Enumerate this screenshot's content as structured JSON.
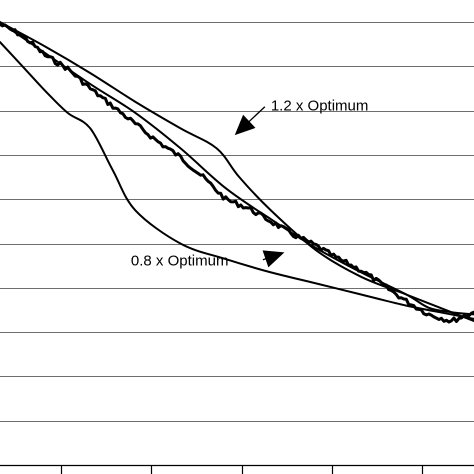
{
  "chart_data": {
    "type": "line",
    "title": "",
    "xlabel": "",
    "ylabel": "",
    "xlim": [
      0,
      10.5
    ],
    "ylim": [
      0,
      10.5
    ],
    "grid": "horizontal",
    "legend": "none",
    "series": [
      {
        "key": "upper",
        "x": [
          0,
          1,
          2,
          3,
          4,
          4.8,
          5.3,
          6,
          7,
          8,
          9,
          10,
          10.5
        ],
        "y": [
          10,
          9.45,
          8.85,
          8.2,
          7.6,
          7.15,
          6.5,
          5.75,
          4.85,
          4.25,
          3.85,
          3.45,
          3.25
        ]
      },
      {
        "key": "optimum",
        "x": [
          0,
          1,
          2,
          3,
          4,
          5,
          6,
          7,
          8,
          9,
          9.5,
          10,
          10.5
        ],
        "y": [
          10,
          9.3,
          8.6,
          7.95,
          7.15,
          6.25,
          5.55,
          4.9,
          4.35,
          3.85,
          3.55,
          3.45,
          3.4
        ]
      },
      {
        "key": "measured",
        "thick": true,
        "noisy": true,
        "x": [
          0,
          0.5,
          1,
          1.5,
          2,
          2.5,
          3,
          3.5,
          4,
          4.5,
          5,
          5.5,
          6,
          6.5,
          7,
          7.5,
          8,
          8.5,
          9,
          9.5,
          10,
          10.5
        ],
        "y": [
          9.95,
          9.7,
          9.25,
          8.95,
          8.5,
          8.1,
          7.7,
          7.3,
          6.95,
          6.5,
          6.0,
          5.8,
          5.5,
          5.2,
          4.95,
          4.65,
          4.4,
          4.05,
          3.7,
          3.4,
          3.25,
          3.45
        ]
      },
      {
        "key": "lower",
        "x": [
          0,
          0.5,
          1,
          1.5,
          2,
          2.5,
          3,
          4,
          5,
          6,
          7,
          8,
          9,
          10,
          10.5
        ],
        "y": [
          9.55,
          9.0,
          8.45,
          7.95,
          7.6,
          6.65,
          5.75,
          5.0,
          4.65,
          4.35,
          4.1,
          3.85,
          3.6,
          3.4,
          3.3
        ]
      }
    ],
    "annotations": [
      {
        "text": "1.2 x Optimum",
        "x": 6.0,
        "y": 8.0,
        "target_x": 5.2,
        "target_y": 7.45
      },
      {
        "text": "0.8 x Optimum",
        "x": 2.9,
        "y": 4.5,
        "target_x": 6.3,
        "target_y": 4.8
      }
    ],
    "y_gridlines": [
      0,
      1,
      2,
      3,
      4,
      5,
      6,
      7,
      8,
      9,
      10
    ],
    "x_ticks": [
      1.35,
      3.35,
      5.35,
      7.35,
      9.35
    ]
  }
}
